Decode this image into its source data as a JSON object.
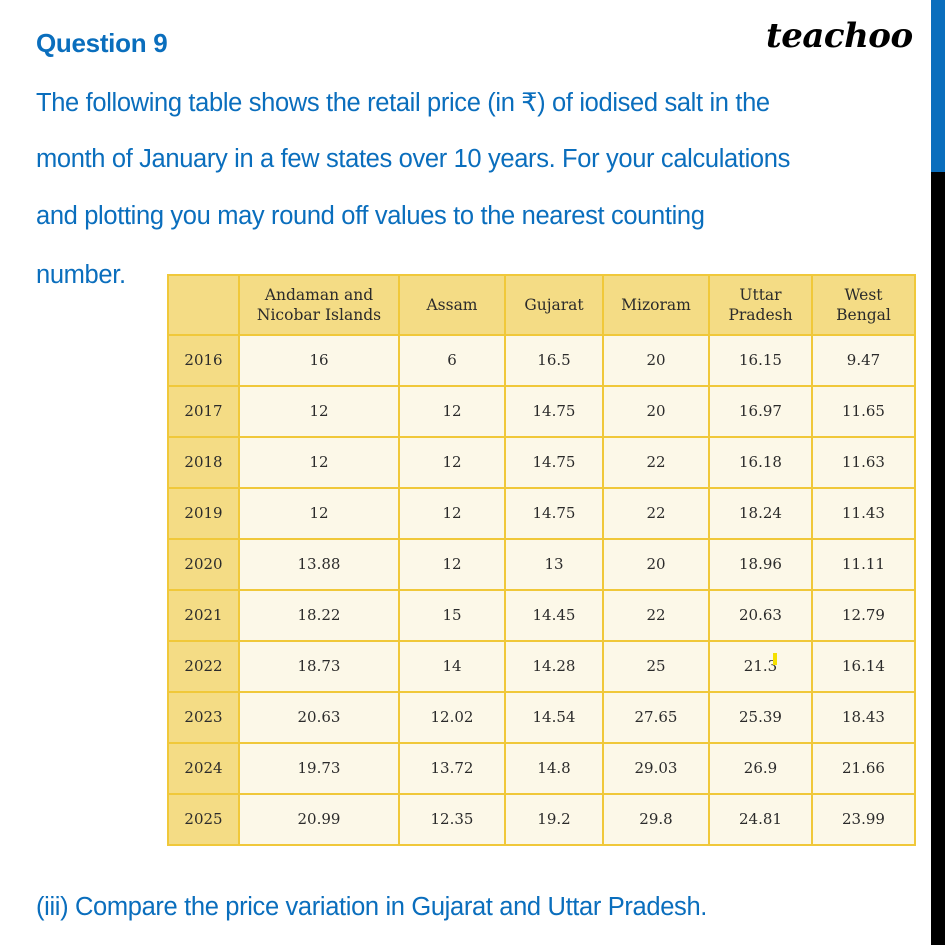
{
  "header": {
    "question_title": "Question 9",
    "brand": "teachoo"
  },
  "question": {
    "lines": [
      "The following table shows the retail price (in ₹) of iodised salt in the",
      "month of January in a few states over 10 years. For your calculations",
      "and plotting you may round off values to the nearest counting",
      "number."
    ],
    "sub_question": "(iii) Compare the price variation in Gujarat and Uttar Pradesh."
  },
  "colors": {
    "text_blue": "#0a6ebd",
    "table_header_bg": "#f4dc85",
    "table_cell_bg": "#fcf8e8",
    "table_border": "#f0c83a",
    "side_band_blue": "#0a6ebd",
    "side_band_black": "#000000"
  },
  "table": {
    "columns": [
      "",
      "Andaman and Nicobar Islands",
      "Assam",
      "Gujarat",
      "Mizoram",
      "Uttar Pradesh",
      "West Bengal"
    ],
    "column_lines": [
      [
        "",
        ""
      ],
      [
        "Andaman and",
        "Nicobar Islands"
      ],
      [
        "Assam",
        ""
      ],
      [
        "Gujarat",
        ""
      ],
      [
        "Mizoram",
        ""
      ],
      [
        "Uttar",
        "Pradesh"
      ],
      [
        "West",
        "Bengal"
      ]
    ],
    "rows": [
      [
        "2016",
        "16",
        "6",
        "16.5",
        "20",
        "16.15",
        "9.47"
      ],
      [
        "2017",
        "12",
        "12",
        "14.75",
        "20",
        "16.97",
        "11.65"
      ],
      [
        "2018",
        "12",
        "12",
        "14.75",
        "22",
        "16.18",
        "11.63"
      ],
      [
        "2019",
        "12",
        "12",
        "14.75",
        "22",
        "18.24",
        "11.43"
      ],
      [
        "2020",
        "13.88",
        "12",
        "13",
        "20",
        "18.96",
        "11.11"
      ],
      [
        "2021",
        "18.22",
        "15",
        "14.45",
        "22",
        "20.63",
        "12.79"
      ],
      [
        "2022",
        "18.73",
        "14",
        "14.28",
        "25",
        "21.3",
        "16.14"
      ],
      [
        "2023",
        "20.63",
        "12.02",
        "14.54",
        "27.65",
        "25.39",
        "18.43"
      ],
      [
        "2024",
        "19.73",
        "13.72",
        "14.8",
        "29.03",
        "26.9",
        "21.66"
      ],
      [
        "2025",
        "20.99",
        "12.35",
        "19.2",
        "29.8",
        "24.81",
        "23.99"
      ]
    ]
  }
}
